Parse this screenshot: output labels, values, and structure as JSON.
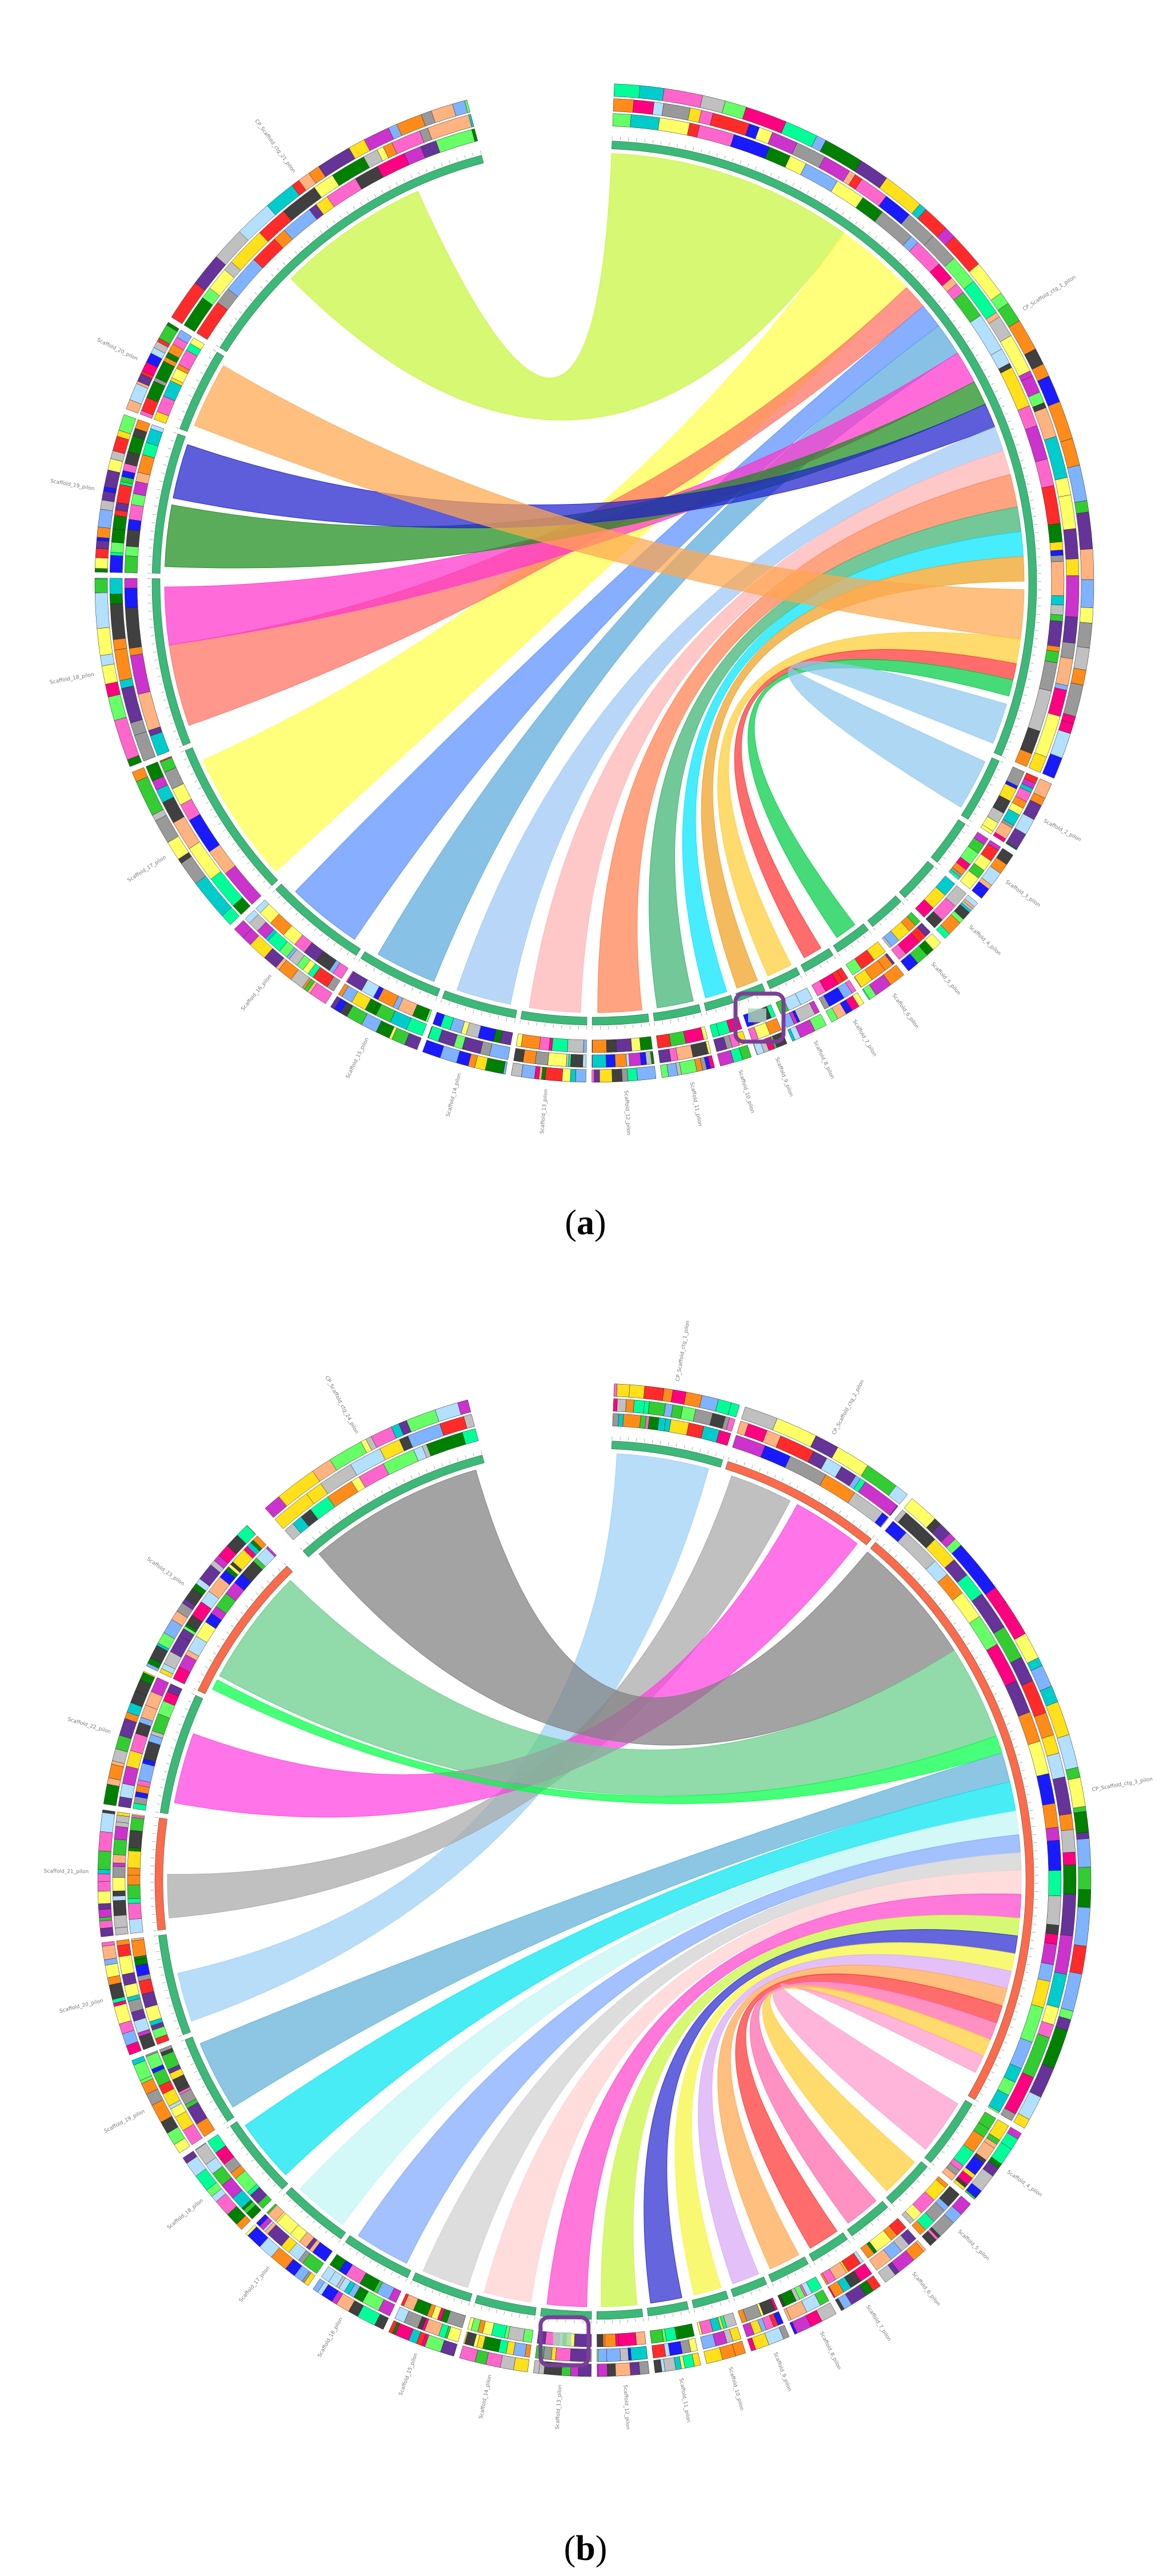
{
  "figure": {
    "panels": [
      {
        "id": "a",
        "caption": "a",
        "highlight_color": "#7b3f99",
        "gap_after": [
          20
        ],
        "segments": [
          {
            "label": "CP_Scaffold_ctg_1_pilon",
            "weight": 180
          },
          {
            "label": "Scaffold_2_pilon",
            "weight": 14
          },
          {
            "label": "Scaffold_3_pilon",
            "weight": 10
          },
          {
            "label": "Scaffold_4_pilon",
            "weight": 9
          },
          {
            "label": "Scaffold_5_pilon",
            "weight": 8
          },
          {
            "label": "Scaffold_6_pilon",
            "weight": 8
          },
          {
            "label": "Scaffold_7_pilon",
            "weight": 7
          },
          {
            "label": "Scaffold_8_pilon",
            "weight": 7
          },
          {
            "label": "Scaffold_9_pilon",
            "weight": 6
          },
          {
            "label": "Scaffold_10_pilon",
            "weight": 6
          },
          {
            "label": "Scaffold_11_pilon",
            "weight": 10
          },
          {
            "label": "Scaffold_12_pilon",
            "weight": 12
          },
          {
            "label": "Scaffold_13_pilon",
            "weight": 14
          },
          {
            "label": "Scaffold_14_pilon",
            "weight": 16
          },
          {
            "label": "Scaffold_15_pilon",
            "weight": 18
          },
          {
            "label": "Scaffold_16_pilon",
            "weight": 22
          },
          {
            "label": "Scaffold_17_pilon",
            "weight": 34
          },
          {
            "label": "Scaffold_18_pilon",
            "weight": 36
          },
          {
            "label": "Scaffold_19_pilon",
            "weight": 30
          },
          {
            "label": "Scaffold_20_pilon",
            "weight": 18
          },
          {
            "label": "CP_Scaffold_ctg_21_pilon",
            "weight": 70
          }
        ],
        "ribbons": [
          {
            "from": [
              0,
              0.0,
              0.3
            ],
            "to": [
              20,
              0.3,
              0.78
            ],
            "color": "#c8f53c"
          },
          {
            "from": [
              0,
              0.3,
              0.4
            ],
            "to": [
              16,
              0.05,
              0.9
            ],
            "color": "#ffff4a"
          },
          {
            "from": [
              0,
              0.4,
              0.43
            ],
            "to": [
              17,
              0.1,
              0.6
            ],
            "color": "#ff6f61"
          },
          {
            "from": [
              0,
              0.43,
              0.46
            ],
            "to": [
              15,
              0.1,
              0.85
            ],
            "color": "#5a8fff"
          },
          {
            "from": [
              0,
              0.46,
              0.5
            ],
            "to": [
              14,
              0.1,
              0.85
            ],
            "color": "#5aa9dd"
          },
          {
            "from": [
              0,
              0.5,
              0.54
            ],
            "to": [
              17,
              0.6,
              0.95
            ],
            "color": "#ff33cc"
          },
          {
            "from": [
              0,
              0.54,
              0.57
            ],
            "to": [
              18,
              0.05,
              0.5
            ],
            "color": "#1a8c1a"
          },
          {
            "from": [
              0,
              0.57,
              0.6
            ],
            "to": [
              18,
              0.55,
              0.95
            ],
            "color": "#2020cc"
          },
          {
            "from": [
              0,
              0.6,
              0.63
            ],
            "to": [
              13,
              0.1,
              0.85
            ],
            "color": "#9cc8f5"
          },
          {
            "from": [
              0,
              0.63,
              0.66
            ],
            "to": [
              12,
              0.1,
              0.9
            ],
            "color": "#ffb3b3"
          },
          {
            "from": [
              0,
              0.66,
              0.7
            ],
            "to": [
              11,
              0.1,
              0.9
            ],
            "color": "#ff7f50"
          },
          {
            "from": [
              0,
              0.7,
              0.73
            ],
            "to": [
              10,
              0.1,
              0.9
            ],
            "color": "#3cb371"
          },
          {
            "from": [
              0,
              0.73,
              0.76
            ],
            "to": [
              9,
              0.1,
              0.9
            ],
            "color": "#00e5ff"
          },
          {
            "from": [
              0,
              0.76,
              0.79
            ],
            "to": [
              8,
              0.1,
              0.9
            ],
            "color": "#f0a020"
          },
          {
            "from": [
              19,
              0.1,
              0.9
            ],
            "to": [
              0,
              0.8,
              0.86
            ],
            "color": "#ffa64d"
          },
          {
            "from": [
              7,
              0.1,
              0.9
            ],
            "to": [
              0,
              0.86,
              0.89
            ],
            "color": "#ffcc33"
          },
          {
            "from": [
              6,
              0.2,
              0.8
            ],
            "to": [
              0,
              0.89,
              0.91
            ],
            "color": "#ff3333"
          },
          {
            "from": [
              5,
              0.2,
              0.8
            ],
            "to": [
              0,
              0.91,
              0.93
            ],
            "color": "#00cc44"
          },
          {
            "from": [
              1,
              0.1,
              0.9
            ],
            "to": [
              0,
              0.94,
              0.99
            ],
            "color": "#8fc8f0"
          }
        ]
      },
      {
        "id": "b",
        "caption": "b",
        "highlight_color": "#7b3f99",
        "gap_after": [
          22,
          23
        ],
        "segments": [
          {
            "label": "CP_Scaffold_ctg_1_pilon",
            "weight": 22
          },
          {
            "label": "CP_Scaffold_ctg_2_pilon",
            "weight": 32
          },
          {
            "label": "CP_Scaffold_ctg_3_pilon",
            "weight": 120
          },
          {
            "label": "Scaffold_4_pilon",
            "weight": 14
          },
          {
            "label": "Scaffold_5_pilon",
            "weight": 10
          },
          {
            "label": "Scaffold_6_pilon",
            "weight": 9
          },
          {
            "label": "Scaffold_7_pilon",
            "weight": 8
          },
          {
            "label": "Scaffold_8_pilon",
            "weight": 8
          },
          {
            "label": "Scaffold_9_pilon",
            "weight": 7
          },
          {
            "label": "Scaffold_10_pilon",
            "weight": 7
          },
          {
            "label": "Scaffold_11_pilon",
            "weight": 8
          },
          {
            "label": "Scaffold_12_pilon",
            "weight": 9
          },
          {
            "label": "Scaffold_13_pilon",
            "weight": 10
          },
          {
            "label": "Scaffold_14_pilon",
            "weight": 12
          },
          {
            "label": "Scaffold_15_pilon",
            "weight": 12
          },
          {
            "label": "Scaffold_16_pilon",
            "weight": 14
          },
          {
            "label": "Scaffold_17_pilon",
            "weight": 14
          },
          {
            "label": "Scaffold_18_pilon",
            "weight": 16
          },
          {
            "label": "Scaffold_19_pilon",
            "weight": 18
          },
          {
            "label": "Scaffold_20_pilon",
            "weight": 20
          },
          {
            "label": "Scaffold_21_pilon",
            "weight": 22
          },
          {
            "label": "Scaffold_22_pilon",
            "weight": 24
          },
          {
            "label": "Scaffold_23_pilon",
            "weight": 30
          },
          {
            "label": "CP_Scaffold_ctg_24_pilon",
            "weight": 40
          }
        ],
        "ribbons": [
          {
            "from": [
              0,
              0.05,
              0.9
            ],
            "to": [
              19,
              0.1,
              0.6
            ],
            "color": "#9cd0f5"
          },
          {
            "from": [
              1,
              0.05,
              0.45
            ],
            "to": [
              20,
              0.1,
              0.5
            ],
            "color": "#a8a8a8"
          },
          {
            "from": [
              1,
              0.5,
              0.95
            ],
            "to": [
              21,
              0.1,
              0.7
            ],
            "color": "#ff40e0"
          },
          {
            "from": [
              2,
              0.0,
              0.22
            ],
            "to": [
              23,
              0.05,
              0.95
            ],
            "color": "#808080"
          },
          {
            "from": [
              2,
              0.22,
              0.38
            ],
            "to": [
              22,
              0.15,
              0.95
            ],
            "color": "#66cc88"
          },
          {
            "from": [
              2,
              0.38,
              0.41
            ],
            "to": [
              22,
              0.05,
              0.12
            ],
            "color": "#00ff44"
          },
          {
            "from": [
              2,
              0.41,
              0.46
            ],
            "to": [
              18,
              0.1,
              0.9
            ],
            "color": "#5fb0d8"
          },
          {
            "from": [
              2,
              0.46,
              0.51
            ],
            "to": [
              17,
              0.1,
              0.9
            ],
            "color": "#00e5f0"
          },
          {
            "from": [
              2,
              0.51,
              0.55
            ],
            "to": [
              16,
              0.1,
              0.9
            ],
            "color": "#c0f5f5"
          },
          {
            "from": [
              2,
              0.55,
              0.58
            ],
            "to": [
              15,
              0.1,
              0.9
            ],
            "color": "#7fa8ff"
          },
          {
            "from": [
              2,
              0.58,
              0.61
            ],
            "to": [
              14,
              0.1,
              0.9
            ],
            "color": "#d0d0d0"
          },
          {
            "from": [
              2,
              0.61,
              0.65
            ],
            "to": [
              13,
              0.1,
              0.9
            ],
            "color": "#ffd0d0"
          },
          {
            "from": [
              2,
              0.65,
              0.69
            ],
            "to": [
              12,
              0.1,
              0.9
            ],
            "color": "#ff44cc"
          },
          {
            "from": [
              2,
              0.69,
              0.72
            ],
            "to": [
              11,
              0.1,
              0.9
            ],
            "color": "#c8f53c"
          },
          {
            "from": [
              2,
              0.72,
              0.75
            ],
            "to": [
              10,
              0.1,
              0.9
            ],
            "color": "#2a2ad0"
          },
          {
            "from": [
              2,
              0.75,
              0.78
            ],
            "to": [
              9,
              0.1,
              0.9
            ],
            "color": "#f5f53c"
          },
          {
            "from": [
              2,
              0.78,
              0.81
            ],
            "to": [
              8,
              0.1,
              0.9
            ],
            "color": "#d8a8f5"
          },
          {
            "from": [
              2,
              0.81,
              0.84
            ],
            "to": [
              7,
              0.1,
              0.9
            ],
            "color": "#ffa64d"
          },
          {
            "from": [
              2,
              0.84,
              0.87
            ],
            "to": [
              6,
              0.1,
              0.9
            ],
            "color": "#ff3333"
          },
          {
            "from": [
              2,
              0.87,
              0.9
            ],
            "to": [
              5,
              0.1,
              0.9
            ],
            "color": "#ff66aa"
          },
          {
            "from": [
              2,
              0.9,
              0.93
            ],
            "to": [
              4,
              0.1,
              0.9
            ],
            "color": "#ffcc33"
          },
          {
            "from": [
              2,
              0.93,
              0.96
            ],
            "to": [
              3,
              0.1,
              0.9
            ],
            "color": "#ff99cc"
          }
        ]
      }
    ]
  }
}
